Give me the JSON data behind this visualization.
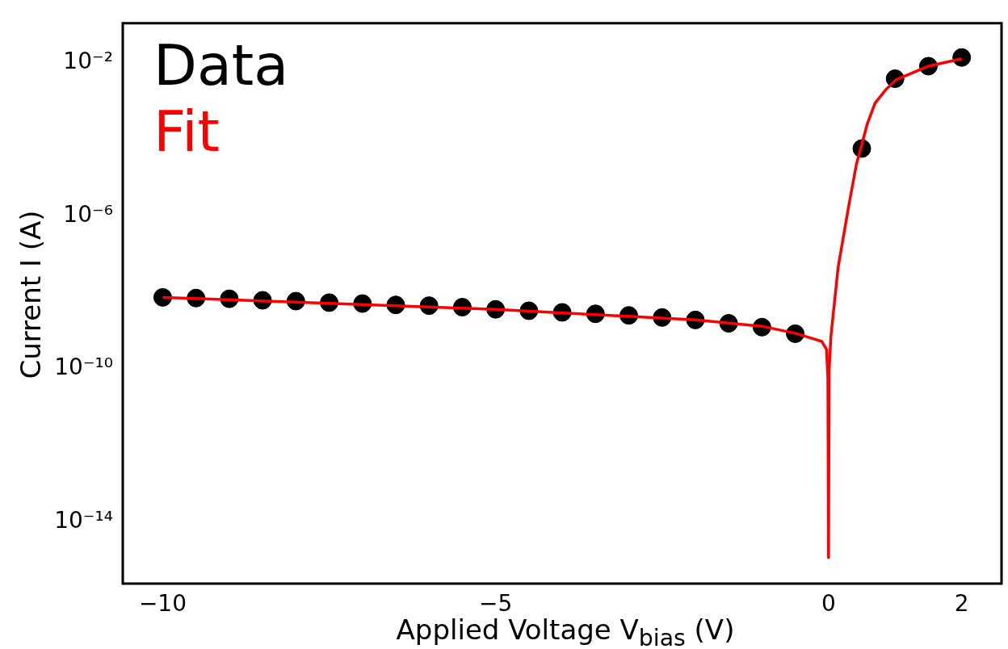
{
  "chart_data": {
    "type": "scatter",
    "xlabel": "Applied Voltage V$_{bias}$ (V)",
    "ylabel": "Current I (A)",
    "log": "y",
    "grid": false,
    "legend": "top left",
    "marker": "circle",
    "xlim": [
      -10.6,
      2.55
    ],
    "xticks": [
      {
        "value": -10,
        "label": "−10"
      },
      {
        "value": -5,
        "label": "−5"
      },
      0,
      2
    ],
    "ylim": [
      2.4e-16,
      0.11
    ],
    "yticks": [
      {
        "value": 0.01,
        "label": "10⁻²"
      },
      {
        "value": 1e-06,
        "label": "10⁻⁶"
      },
      {
        "value": 1e-10,
        "label": "10⁻¹⁰"
      },
      {
        "value": 1e-14,
        "label": "10⁻¹⁴"
      }
    ],
    "series": [
      {
        "name": "Data",
        "color": "#000000",
        "type": "scatter",
        "x": [
          -10,
          -9.5,
          -9,
          -8.5,
          -8,
          -7.5,
          -7,
          -6.5,
          -6,
          -5.5,
          -5,
          -4.5,
          -4,
          -3.5,
          -3,
          -2.5,
          -2,
          -1.5,
          -1,
          -0.5,
          0.5,
          1,
          1.5,
          2
        ],
        "values": [
          7.4e-09,
          7.1e-09,
          6.8e-09,
          6.2e-09,
          5.9e-09,
          5.4e-09,
          5.1e-09,
          4.7e-09,
          4.5e-09,
          4.1e-09,
          3.6e-09,
          3.3e-09,
          3e-09,
          2.75e-09,
          2.5e-09,
          2.2e-09,
          1.9e-09,
          1.55e-09,
          1.23e-09,
          8.3e-10,
          5.8e-05,
          0.0039,
          0.0083,
          0.014
        ]
      },
      {
        "name": "Fit",
        "color": "#ff0000",
        "type": "line",
        "marker": "none",
        "x": [
          -10,
          -5,
          -2,
          -1,
          -0.5,
          -0.25,
          -0.1,
          -0.03,
          -0.01,
          0,
          0.01,
          0.036,
          0.144,
          0.3,
          0.42,
          0.5,
          0.58,
          0.7,
          0.87,
          1.02,
          1.5,
          2
        ],
        "values": [
          7.4e-09,
          3.6e-09,
          1.9e-09,
          1.3e-09,
          8.5e-10,
          6.3e-10,
          5.2e-10,
          3.2e-10,
          6e-11,
          1.15e-15,
          1e-10,
          7.2e-10,
          4.5e-08,
          1.7e-06,
          2.3e-05,
          7.4e-05,
          0.00025,
          0.0009,
          0.0021,
          0.0037,
          0.0083,
          0.013
        ]
      }
    ]
  }
}
